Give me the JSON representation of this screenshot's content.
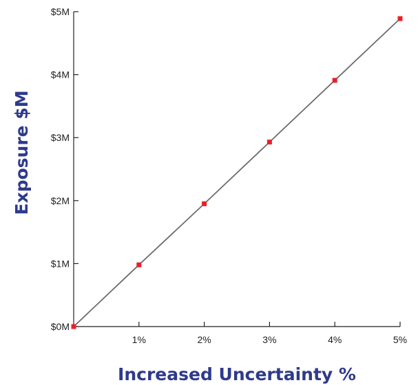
{
  "chart_data": {
    "type": "line",
    "title": "",
    "xlabel": "Increased Uncertainty %",
    "ylabel": "Exposure $M",
    "x": [
      0,
      1,
      2,
      3,
      4,
      5
    ],
    "x_ticks": [
      {
        "value": 1,
        "label": "1%"
      },
      {
        "value": 2,
        "label": "2%"
      },
      {
        "value": 3,
        "label": "3%"
      },
      {
        "value": 4,
        "label": "4%"
      },
      {
        "value": 5,
        "label": "5%"
      }
    ],
    "y_ticks": [
      {
        "value": 0,
        "label": "$0M"
      },
      {
        "value": 1,
        "label": "$1M"
      },
      {
        "value": 2,
        "label": "$2M"
      },
      {
        "value": 3,
        "label": "$3M"
      },
      {
        "value": 4,
        "label": "$4M"
      },
      {
        "value": 5,
        "label": "$5M"
      }
    ],
    "series": [
      {
        "values": [
          0,
          0.98,
          1.95,
          2.93,
          3.91,
          4.89
        ]
      }
    ],
    "xlim": [
      0,
      5
    ],
    "ylim": [
      0,
      5
    ],
    "grid": false,
    "legend": "none",
    "colors": {
      "line": "#6b6b6b",
      "marker": "#e8202a",
      "axis": "#222222",
      "axis_title": "#2e3a8c"
    }
  }
}
